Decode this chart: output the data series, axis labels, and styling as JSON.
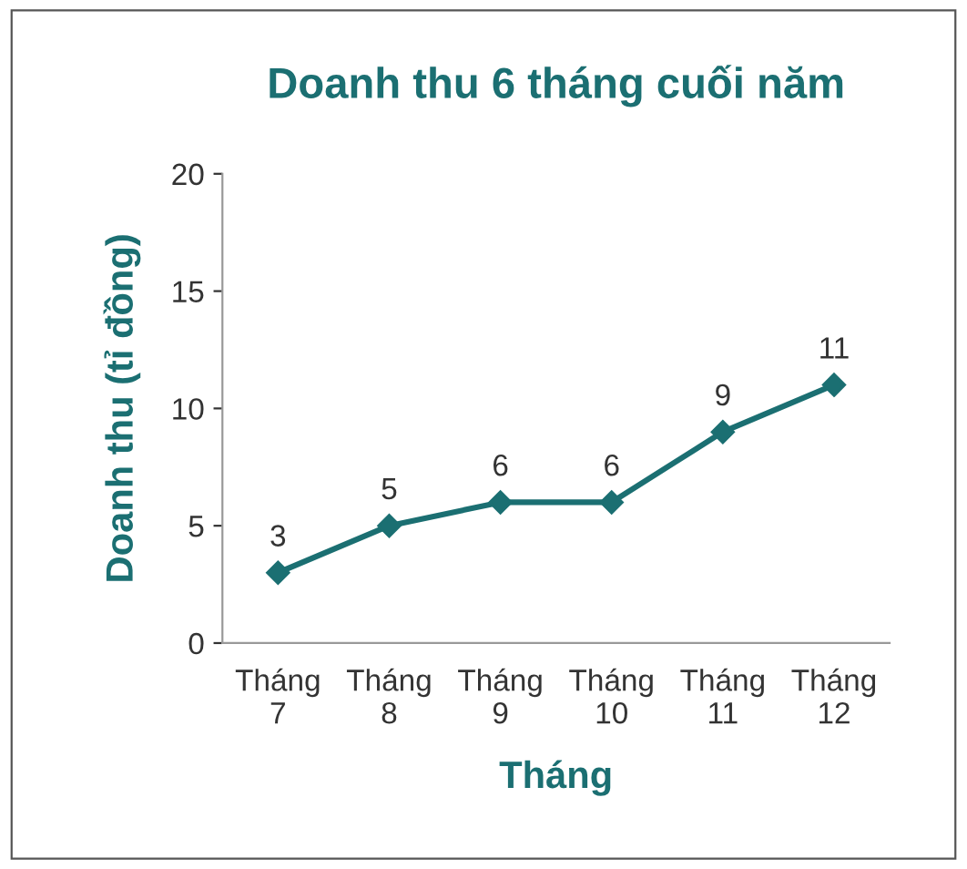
{
  "chart_data": {
    "type": "line",
    "title": "Doanh thu 6 tháng cuối năm",
    "xlabel": "Tháng",
    "ylabel": "Doanh thu (tỉ đồng)",
    "categories": [
      "Tháng\n7",
      "Tháng\n8",
      "Tháng\n9",
      "Tháng\n10",
      "Tháng\n11",
      "Tháng\n12"
    ],
    "values": [
      3,
      5,
      6,
      6,
      9,
      11
    ],
    "color": "#1b6f72",
    "ylim": [
      0,
      20
    ],
    "yticks": [
      0,
      5,
      10,
      15,
      20
    ],
    "grid": false,
    "marker": "diamond",
    "data_labels": true
  }
}
